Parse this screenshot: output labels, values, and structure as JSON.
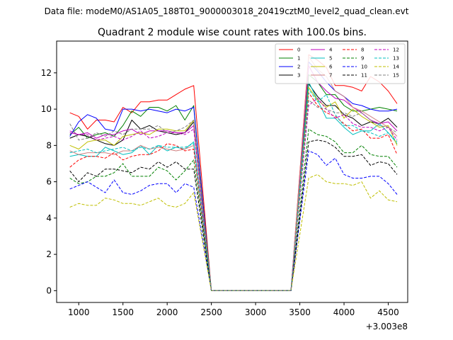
{
  "chart_data": {
    "type": "line",
    "suptitle": "Data file: modeM0/AS1A05_188T01_9000003018_20419cztM0_level2_quad_clean.evt",
    "title": "Quadrant 2 module wise count rates with 100.0s bins.",
    "xlabel": "",
    "ylabel": "",
    "x_offset_label": "+3.003e8",
    "xlim": [
      750,
      4720
    ],
    "ylim": [
      -0.65,
      13.75
    ],
    "x_ticks": [
      1000,
      1500,
      2000,
      2500,
      3000,
      3500,
      4000,
      4500
    ],
    "y_ticks": [
      0,
      2,
      4,
      6,
      8,
      10,
      12
    ],
    "grid": false,
    "legend_placement": "upper-right",
    "legend_columns": 4,
    "x": [
      900,
      1000,
      1100,
      1200,
      1300,
      1400,
      1500,
      1600,
      1700,
      1800,
      1900,
      2000,
      2100,
      2200,
      2300,
      2500,
      2600,
      2700,
      2800,
      2900,
      3000,
      3100,
      3200,
      3300,
      3400,
      3600,
      3700,
      3800,
      3900,
      4000,
      4100,
      4200,
      4300,
      4400,
      4500,
      4600
    ],
    "series": [
      {
        "name": "0",
        "color": "#ff0000",
        "dash": false,
        "values": [
          9.8,
          9.6,
          8.9,
          9.4,
          9.4,
          9.3,
          10.1,
          9.8,
          10.4,
          10.4,
          10.5,
          10.5,
          10.8,
          11.1,
          11.3,
          0,
          0,
          0,
          0,
          0,
          0,
          0,
          0,
          0,
          0,
          13.0,
          12.7,
          12.3,
          11.3,
          11.3,
          11.2,
          11.0,
          11.8,
          11.5,
          11.0,
          10.3
        ]
      },
      {
        "name": "1",
        "color": "#008000",
        "dash": false,
        "values": [
          8.6,
          9.0,
          8.4,
          8.6,
          8.7,
          8.5,
          9.1,
          9.9,
          9.6,
          10.1,
          10.1,
          9.9,
          10.2,
          9.4,
          10.2,
          0,
          0,
          0,
          0,
          0,
          0,
          0,
          0,
          0,
          0,
          11.9,
          11.5,
          10.8,
          10.8,
          10.2,
          9.9,
          9.9,
          10.0,
          10.1,
          10.0,
          9.9
        ]
      },
      {
        "name": "2",
        "color": "#0000ff",
        "dash": false,
        "values": [
          8.5,
          9.3,
          9.7,
          9.5,
          8.9,
          8.8,
          10.0,
          10.0,
          9.9,
          10.0,
          9.9,
          9.8,
          10.0,
          9.9,
          10.1,
          0,
          0,
          0,
          0,
          0,
          0,
          0,
          0,
          0,
          0,
          12.6,
          12.1,
          11.5,
          11.0,
          10.7,
          10.3,
          10.2,
          10.0,
          9.9,
          9.9,
          10.0
        ]
      },
      {
        "name": "3",
        "color": "#000000",
        "dash": false,
        "values": [
          8.4,
          8.6,
          8.5,
          8.3,
          8.1,
          8.0,
          8.3,
          9.4,
          8.9,
          9.1,
          8.8,
          8.7,
          8.6,
          8.7,
          9.3,
          0,
          0,
          0,
          0,
          0,
          0,
          0,
          0,
          0,
          0,
          11.4,
          10.7,
          10.2,
          10.2,
          9.7,
          9.5,
          9.1,
          9.3,
          9.2,
          9.5,
          9.0
        ]
      },
      {
        "name": "4",
        "color": "#bf00bf",
        "dash": false,
        "values": [
          8.7,
          8.6,
          8.7,
          8.4,
          8.6,
          8.6,
          8.8,
          8.9,
          8.6,
          8.8,
          8.8,
          8.8,
          8.7,
          8.7,
          9.1,
          0,
          0,
          0,
          0,
          0,
          0,
          0,
          0,
          0,
          0,
          12.4,
          11.5,
          11.0,
          10.6,
          10.5,
          10.1,
          9.8,
          9.4,
          9.2,
          9.3,
          8.8
        ]
      },
      {
        "name": "5",
        "color": "#00bfbf",
        "dash": false,
        "values": [
          7.4,
          7.5,
          7.4,
          7.4,
          7.9,
          7.7,
          7.5,
          7.6,
          8.0,
          7.5,
          8.0,
          7.7,
          7.9,
          7.8,
          8.2,
          0,
          0,
          0,
          0,
          0,
          0,
          0,
          0,
          0,
          0,
          11.5,
          10.5,
          9.5,
          9.5,
          9.0,
          8.6,
          8.8,
          8.8,
          9.2,
          8.7,
          8.1
        ]
      },
      {
        "name": "6",
        "color": "#bfbf00",
        "dash": false,
        "values": [
          8.0,
          7.8,
          8.2,
          8.3,
          8.3,
          8.0,
          8.5,
          8.6,
          8.7,
          8.6,
          8.9,
          8.9,
          8.8,
          8.8,
          9.4,
          0,
          0,
          0,
          0,
          0,
          0,
          0,
          0,
          0,
          0,
          11.2,
          10.5,
          10.1,
          10.4,
          9.5,
          10.0,
          9.6,
          9.3,
          9.0,
          9.1,
          8.0
        ]
      },
      {
        "name": "7",
        "color": "#d08080",
        "dash": false,
        "values": [
          7.7,
          7.5,
          7.6,
          7.6,
          7.6,
          7.5,
          7.7,
          7.7,
          8.0,
          7.8,
          7.9,
          7.8,
          7.7,
          7.8,
          8.0,
          0,
          0,
          0,
          0,
          0,
          0,
          0,
          0,
          0,
          0,
          12.9,
          12.2,
          11.8,
          11.0,
          10.7,
          10.1,
          9.9,
          9.6,
          9.3,
          9.0,
          8.5
        ]
      },
      {
        "name": "8",
        "color": "#ff0000",
        "dash": true,
        "values": [
          6.8,
          7.2,
          7.4,
          7.4,
          7.3,
          7.6,
          7.2,
          7.4,
          7.5,
          7.5,
          7.7,
          8.1,
          8.0,
          7.7,
          7.8,
          0,
          0,
          0,
          0,
          0,
          0,
          0,
          0,
          0,
          0,
          10.9,
          10.2,
          9.8,
          9.6,
          9.2,
          8.8,
          8.9,
          8.4,
          8.4,
          8.6,
          7.5
        ]
      },
      {
        "name": "9",
        "color": "#008000",
        "dash": true,
        "values": [
          6.2,
          5.9,
          6.0,
          6.3,
          6.3,
          6.5,
          7.0,
          6.3,
          6.3,
          6.3,
          6.8,
          6.6,
          6.1,
          6.6,
          7.2,
          0,
          0,
          0,
          0,
          0,
          0,
          0,
          0,
          0,
          0,
          8.9,
          8.6,
          8.5,
          8.2,
          7.6,
          7.6,
          8.0,
          7.5,
          7.4,
          7.4,
          6.8
        ]
      },
      {
        "name": "10",
        "color": "#0000ff",
        "dash": true,
        "values": [
          5.6,
          5.8,
          6.0,
          5.7,
          5.4,
          6.1,
          5.4,
          5.3,
          5.5,
          5.8,
          5.9,
          5.9,
          5.4,
          5.9,
          5.7,
          0,
          0,
          0,
          0,
          0,
          0,
          0,
          0,
          0,
          0,
          7.7,
          7.5,
          6.9,
          7.3,
          6.4,
          6.2,
          6.2,
          6.3,
          6.3,
          5.9,
          5.3
        ]
      },
      {
        "name": "11",
        "color": "#000000",
        "dash": true,
        "values": [
          6.6,
          6.0,
          6.5,
          6.3,
          6.7,
          6.7,
          6.6,
          6.5,
          6.8,
          6.7,
          7.1,
          6.8,
          7.1,
          6.7,
          6.7,
          0,
          0,
          0,
          0,
          0,
          0,
          0,
          0,
          0,
          0,
          8.2,
          8.3,
          8.2,
          7.9,
          7.4,
          7.4,
          7.5,
          6.9,
          7.1,
          7.0,
          6.4
        ]
      },
      {
        "name": "12",
        "color": "#bf00bf",
        "dash": true,
        "values": [
          8.8,
          8.6,
          8.6,
          8.3,
          8.4,
          8.5,
          8.3,
          8.5,
          8.8,
          8.4,
          8.5,
          8.7,
          8.7,
          8.6,
          8.9,
          0,
          0,
          0,
          0,
          0,
          0,
          0,
          0,
          0,
          0,
          10.2,
          10.6,
          10.0,
          9.5,
          9.7,
          9.2,
          9.0,
          9.0,
          8.8,
          9.0,
          8.3
        ]
      },
      {
        "name": "13",
        "color": "#00bfbf",
        "dash": true,
        "values": [
          7.6,
          7.7,
          7.8,
          7.6,
          7.7,
          7.8,
          7.9,
          7.7,
          7.9,
          7.8,
          8.0,
          7.9,
          7.9,
          7.9,
          8.1,
          0,
          0,
          0,
          0,
          0,
          0,
          0,
          0,
          0,
          0,
          11.1,
          10.4,
          10.8,
          9.7,
          9.1,
          9.1,
          8.8,
          8.7,
          8.5,
          8.7,
          8.2
        ]
      },
      {
        "name": "14",
        "color": "#bfbf00",
        "dash": true,
        "values": [
          4.6,
          4.8,
          4.7,
          4.7,
          5.1,
          5.0,
          4.8,
          4.8,
          4.7,
          4.9,
          5.1,
          4.7,
          4.6,
          4.8,
          5.4,
          0,
          0,
          0,
          0,
          0,
          0,
          0,
          0,
          0,
          0,
          6.2,
          6.4,
          6.0,
          5.9,
          5.9,
          5.8,
          6.0,
          5.1,
          5.5,
          5.0,
          4.9
        ]
      },
      {
        "name": "15",
        "color": "#808080",
        "dash": true,
        "values": [
          9.2,
          8.3,
          8.4,
          8.7,
          8.5,
          8.8,
          8.6,
          8.9,
          8.9,
          8.9,
          9.1,
          8.7,
          8.8,
          9.0,
          9.4,
          0,
          0,
          0,
          0,
          0,
          0,
          0,
          0,
          0,
          0,
          10.5,
          10.1,
          10.0,
          9.8,
          9.8,
          9.6,
          9.8,
          9.4,
          9.1,
          9.0,
          8.7
        ]
      }
    ]
  }
}
